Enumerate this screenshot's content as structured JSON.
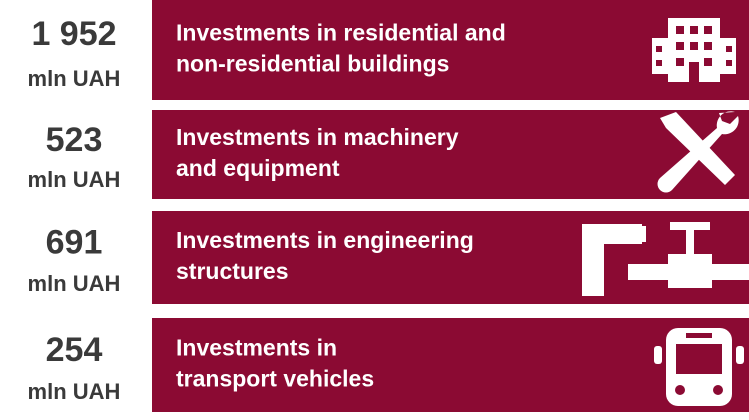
{
  "items": [
    {
      "amount": "1 952",
      "unit": "mln UAH",
      "label": [
        "Investments in residential and",
        "non-residential buildings"
      ]
    },
    {
      "amount": "523",
      "unit": "mln UAH",
      "label": [
        "Investments in machinery",
        "and equipment"
      ]
    },
    {
      "amount": "691",
      "unit": "mln UAH",
      "label": [
        "Investments in engineering",
        "structures"
      ]
    },
    {
      "amount": "254",
      "unit": "mln UAH",
      "label": [
        "Investments in",
        "transport vehicles"
      ]
    }
  ]
}
